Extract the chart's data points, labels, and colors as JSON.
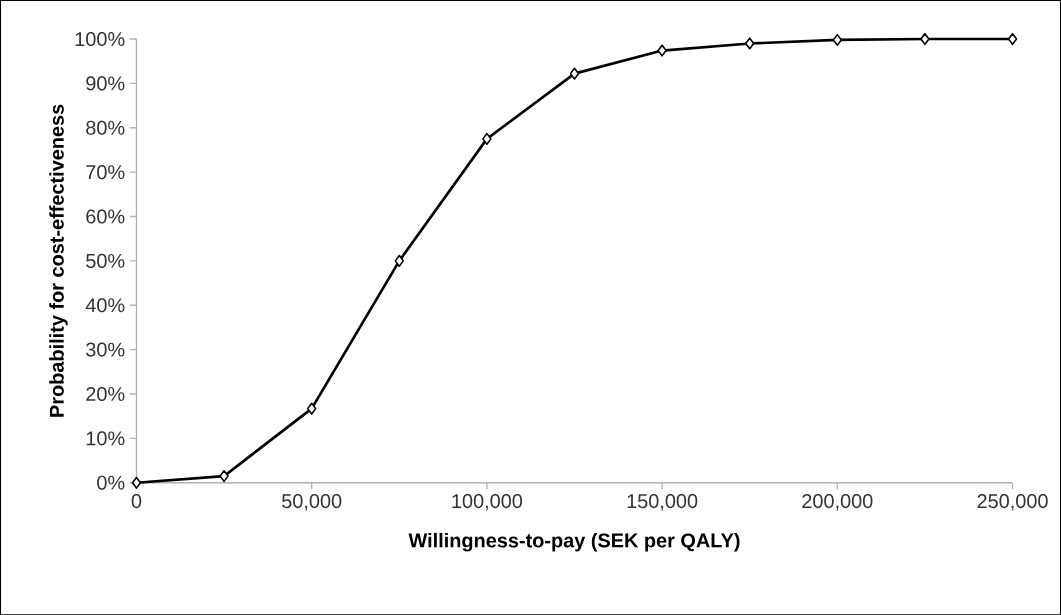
{
  "chart_data": {
    "type": "line",
    "xlabel": "Willingness-to-pay (SEK per QALY)",
    "ylabel": "Probability for cost-effectiveness",
    "x": [
      0,
      25000,
      50000,
      75000,
      100000,
      125000,
      150000,
      175000,
      200000,
      225000,
      250000
    ],
    "series": [
      {
        "color": "#000000",
        "values": [
          0,
          1.5,
          16.7,
          50,
          77.5,
          92.2,
          97.4,
          99,
          99.8,
          100,
          100
        ]
      }
    ],
    "xlim": [
      0,
      250000
    ],
    "ylim": [
      0,
      100
    ],
    "xticks": [
      0,
      {
        "value": 50000,
        "label": "50,000"
      },
      {
        "value": 100000,
        "label": "100,000"
      },
      {
        "value": 150000,
        "label": "150,000"
      },
      {
        "value": 200000,
        "label": "200,000"
      },
      {
        "value": 250000,
        "label": "250,000"
      }
    ],
    "yticks": [
      {
        "value": 0,
        "label": "0%"
      },
      {
        "value": 10,
        "label": "10%"
      },
      {
        "value": 20,
        "label": "20%"
      },
      {
        "value": 30,
        "label": "30%"
      },
      {
        "value": 40,
        "label": "40%"
      },
      {
        "value": 50,
        "label": "50%"
      },
      {
        "value": 60,
        "label": "60%"
      },
      {
        "value": 70,
        "label": "70%"
      },
      {
        "value": 80,
        "label": "80%"
      },
      {
        "value": 90,
        "label": "90%"
      },
      {
        "value": 100,
        "label": "100%"
      }
    ],
    "marker": "diamond",
    "line_style": "solid",
    "grid": false
  }
}
